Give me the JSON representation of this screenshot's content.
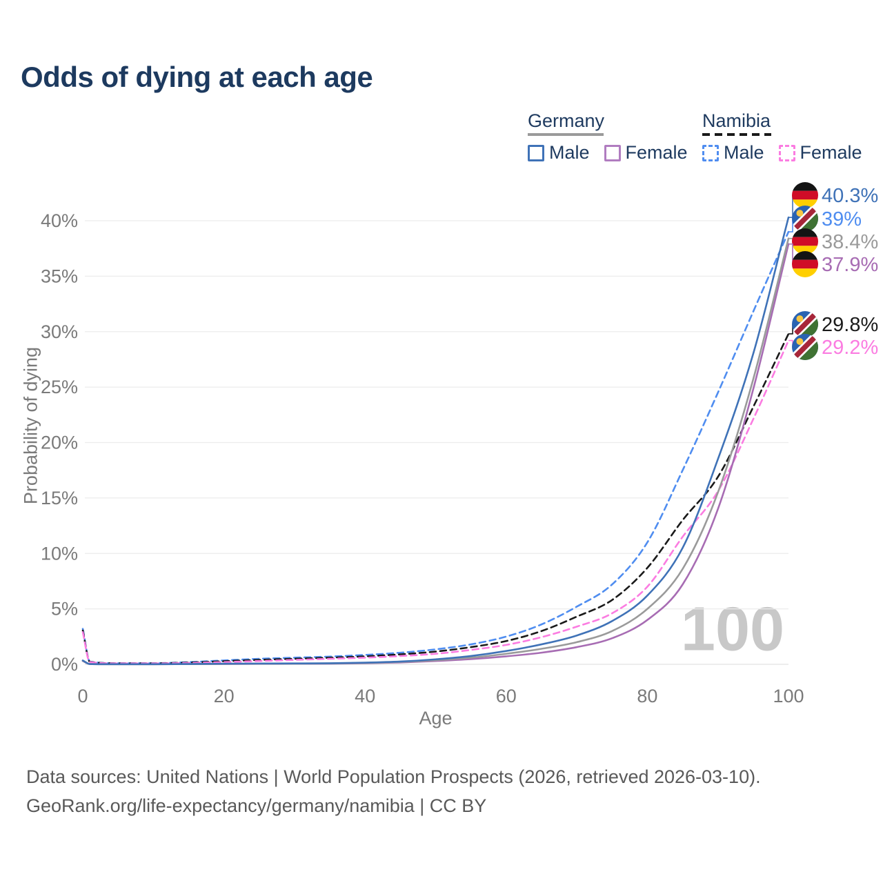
{
  "title": "Odds of dying at each age",
  "legend": {
    "groups": [
      {
        "name": "Germany",
        "line_style": "solid",
        "line_color": "#9a9a9a",
        "items": [
          {
            "label": "Male",
            "color": "#3f72b7",
            "dashed": false
          },
          {
            "label": "Female",
            "color": "#b07cc0",
            "dashed": false
          }
        ]
      },
      {
        "name": "Namibia",
        "line_style": "dashed",
        "line_color": "#1a1a1a",
        "items": [
          {
            "label": "Male",
            "color": "#4f8df0",
            "dashed": true
          },
          {
            "label": "Female",
            "color": "#fb7ce1",
            "dashed": true
          }
        ]
      }
    ]
  },
  "chart_data": {
    "type": "line",
    "title": "Odds of dying at each age",
    "xlabel": "Age",
    "ylabel": "Probability of dying",
    "x_ticks": [
      0,
      20,
      40,
      60,
      80,
      100
    ],
    "y_tick_labels": [
      "0%",
      "5%",
      "10%",
      "15%",
      "20%",
      "25%",
      "30%",
      "35%",
      "40%"
    ],
    "y_tick_values": [
      0,
      5,
      10,
      15,
      20,
      25,
      30,
      35,
      40
    ],
    "xlim": [
      0,
      100
    ],
    "ylim_percent": [
      0,
      42
    ],
    "grid": "horizontal",
    "legend_position": "top-right",
    "watermark": "100",
    "ages": [
      0,
      1,
      5,
      10,
      15,
      20,
      25,
      30,
      35,
      40,
      45,
      50,
      55,
      60,
      65,
      70,
      75,
      80,
      85,
      90,
      95,
      100
    ],
    "series": [
      {
        "id": "namibia-male",
        "name": "Namibia Male",
        "country": "Namibia",
        "sex": "male",
        "color": "#4f8df0",
        "dashed": true,
        "values": [
          3.2,
          0.25,
          0.1,
          0.1,
          0.2,
          0.35,
          0.5,
          0.6,
          0.7,
          0.85,
          1.05,
          1.35,
          1.8,
          2.5,
          3.6,
          5.2,
          7.2,
          11.0,
          17.5,
          24.5,
          31.8,
          39.0
        ]
      },
      {
        "id": "namibia-both",
        "name": "Namibia Both sexes",
        "country": "Namibia",
        "sex": "both",
        "color": "#1a1a1a",
        "dashed": true,
        "values": [
          3.05,
          0.23,
          0.09,
          0.09,
          0.16,
          0.28,
          0.4,
          0.5,
          0.6,
          0.72,
          0.9,
          1.15,
          1.55,
          2.1,
          3.0,
          4.3,
          5.8,
          8.7,
          13.0,
          16.9,
          23.2,
          29.8
        ]
      },
      {
        "id": "namibia-female",
        "name": "Namibia Female",
        "country": "Namibia",
        "sex": "female",
        "color": "#fb7ce1",
        "dashed": true,
        "values": [
          2.9,
          0.21,
          0.08,
          0.08,
          0.12,
          0.2,
          0.3,
          0.4,
          0.5,
          0.6,
          0.75,
          0.95,
          1.3,
          1.75,
          2.45,
          3.4,
          4.6,
          7.0,
          11.5,
          15.6,
          22.1,
          29.2
        ]
      },
      {
        "id": "germany-female",
        "name": "Germany Female",
        "country": "Germany",
        "sex": "female",
        "color": "#a76cb3",
        "dashed": false,
        "values": [
          0.3,
          0.02,
          0.01,
          0.01,
          0.02,
          0.03,
          0.04,
          0.05,
          0.06,
          0.1,
          0.17,
          0.3,
          0.47,
          0.72,
          1.05,
          1.55,
          2.35,
          4.0,
          7.2,
          14.0,
          24.8,
          37.9
        ]
      },
      {
        "id": "germany-both",
        "name": "Germany Both sexes",
        "country": "Germany",
        "sex": "both",
        "color": "#9a9a9a",
        "dashed": false,
        "values": [
          0.32,
          0.03,
          0.01,
          0.01,
          0.02,
          0.04,
          0.05,
          0.06,
          0.08,
          0.12,
          0.21,
          0.37,
          0.6,
          0.95,
          1.4,
          2.0,
          3.0,
          5.0,
          8.6,
          15.5,
          25.7,
          38.4
        ]
      },
      {
        "id": "germany-male",
        "name": "Germany Male",
        "country": "Germany",
        "sex": "male",
        "color": "#3f72b7",
        "dashed": false,
        "values": [
          0.35,
          0.03,
          0.01,
          0.01,
          0.03,
          0.06,
          0.07,
          0.08,
          0.1,
          0.15,
          0.25,
          0.45,
          0.75,
          1.2,
          1.8,
          2.6,
          3.9,
          6.2,
          10.5,
          18.5,
          28.0,
          40.3
        ]
      }
    ],
    "end_labels": [
      {
        "text": "40.3%",
        "series_id": "germany-male",
        "flag": "germany",
        "color": "#3f72b7"
      },
      {
        "text": "39%",
        "series_id": "namibia-male",
        "flag": "namibia",
        "color": "#4f8df0"
      },
      {
        "text": "38.4%",
        "series_id": "germany-both",
        "flag": "germany",
        "color": "#9a9a9a"
      },
      {
        "text": "37.9%",
        "series_id": "germany-female",
        "flag": "germany",
        "color": "#a76cb3"
      },
      {
        "text": "29.8%",
        "series_id": "namibia-both",
        "flag": "namibia",
        "color": "#1a1a1a"
      },
      {
        "text": "29.2%",
        "series_id": "namibia-female",
        "flag": "namibia",
        "color": "#fb7ce1"
      }
    ],
    "flag_colors": {
      "germany": {
        "black": "#141414",
        "red": "#d00c27",
        "gold": "#ffcf00"
      },
      "namibia": {
        "blue": "#2a63b2",
        "red": "#a72639",
        "green": "#3f7233",
        "white": "#ffffff",
        "sun_gold": "#f7c744"
      }
    }
  },
  "footer": {
    "line1": "Data sources: United Nations | World Population Prospects (2026, retrieved 2026-03-10).",
    "line2": "GeoRank.org/life-expectancy/germany/namibia | CC BY"
  }
}
